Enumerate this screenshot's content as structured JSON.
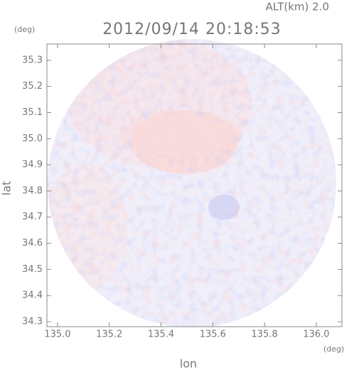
{
  "chart_data": {
    "type": "image",
    "title": "2012/09/14 20:18:53",
    "subtitle": "ALT(km) 2.0",
    "x_label": "lon",
    "y_label": "lat",
    "x_unit": "(deg)",
    "y_unit": "(deg)",
    "xlim": [
      134.959,
      136.099
    ],
    "ylim": [
      34.281,
      35.362
    ],
    "xticks": [
      {
        "value": 135.0,
        "label": "135.0"
      },
      135.2,
      135.4,
      135.6,
      135.8,
      {
        "value": 136.0,
        "label": "136.0"
      }
    ],
    "yticks": [
      34.3,
      34.4,
      34.5,
      34.6,
      34.7,
      34.8,
      34.9,
      {
        "value": 35.0,
        "label": "35.0"
      },
      35.1,
      35.2,
      35.3
    ]
  }
}
